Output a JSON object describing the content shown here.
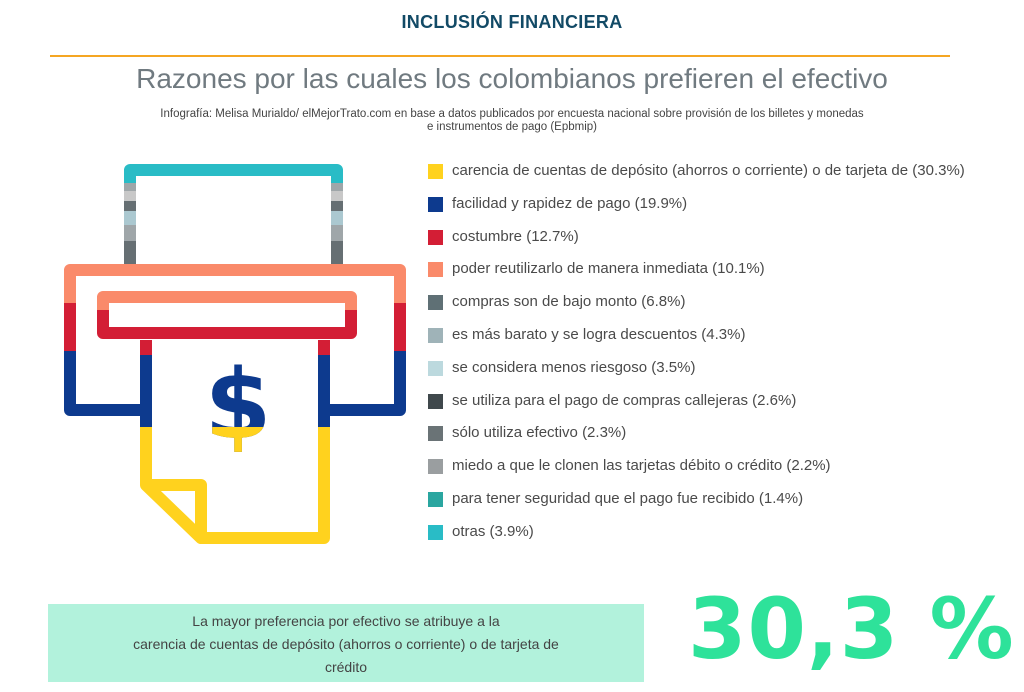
{
  "header": "INCLUSIÓN FINANCIERA",
  "title": "Razones por las cuales los colombianos prefieren el efectivo",
  "source_line1": "Infografía: Melisa Murialdo/ elMejorTrato.com en base a datos publicados por encuesta nacional sobre provisión de los billetes y monedas",
  "source_line2": "e instrumentos de pago (Epbmip)",
  "illustration": {
    "icon": "printer-cash-dollar-icon",
    "dollar_sign": "$",
    "colors": {
      "teal": "#29bcc6",
      "salmon": "#fa8a6a",
      "red": "#d31e35",
      "navy": "#0d3a8e",
      "yellow": "#ffd21e",
      "grays": [
        "#c8c8c8",
        "#9fa6a9",
        "#666f73",
        "#abc8d0",
        "#3f484c"
      ]
    }
  },
  "chart_data": {
    "type": "bar",
    "categories": [
      "carencia de cuentas de depósito (ahorros o corriente) o de tarjeta de",
      "facilidad y rapidez de pago",
      "costumbre",
      "poder reutilizarlo de manera inmediata",
      "compras son de bajo monto",
      "es más barato y se logra descuentos",
      "se considera menos riesgoso",
      "se utiliza para el pago de compras callejeras",
      "sólo utiliza efectivo",
      "miedo a que le clonen las tarjetas débito o crédito",
      "para tener seguridad que el pago fue recibido",
      "otras"
    ],
    "values": [
      30.3,
      19.9,
      12.7,
      10.1,
      6.8,
      4.3,
      3.5,
      2.6,
      2.3,
      2.2,
      1.4,
      3.9
    ],
    "legend": [
      {
        "label": "carencia de cuentas de depósito (ahorros o corriente) o de tarjeta de (30.3%)",
        "color": "#ffd21e"
      },
      {
        "label": "facilidad y rapidez de pago (19.9%)",
        "color": "#0d3a8e"
      },
      {
        "label": "costumbre (12.7%)",
        "color": "#d31e35"
      },
      {
        "label": "poder reutilizarlo de manera inmediata (10.1%)",
        "color": "#fa8a6a"
      },
      {
        "label": "compras son de bajo monto (6.8%)",
        "color": "#5f7075"
      },
      {
        "label": "es más barato y se logra descuentos (4.3%)",
        "color": "#9fb3b8"
      },
      {
        "label": "se considera menos riesgoso (3.5%)",
        "color": "#bcd9de"
      },
      {
        "label": "se utiliza para el pago de compras callejeras (2.6%)",
        "color": "#3f484c"
      },
      {
        "label": "sólo utiliza efectivo (2.3%)",
        "color": "#6a7376"
      },
      {
        "label": "miedo a que le clonen las tarjetas débito o crédito (2.2%)",
        "color": "#9a9ea0"
      },
      {
        "label": "para tener seguridad que el pago fue recibido (1.4%)",
        "color": "#2aa6a0"
      },
      {
        "label": "otras (3.9%)",
        "color": "#29bcc6"
      }
    ]
  },
  "callout": {
    "line1": "La mayor preferencia por efectivo se atribuye a la",
    "line2": "carencia de cuentas de depósito (ahorros o corriente) o de tarjeta de",
    "line3": "crédito"
  },
  "highlight_value": "30,3 %",
  "colors": {
    "header": "#124a66",
    "rule": "#f5a623",
    "title": "#707a80",
    "callout_bg": "#b2f2dc",
    "highlight": "#2ee29a"
  }
}
